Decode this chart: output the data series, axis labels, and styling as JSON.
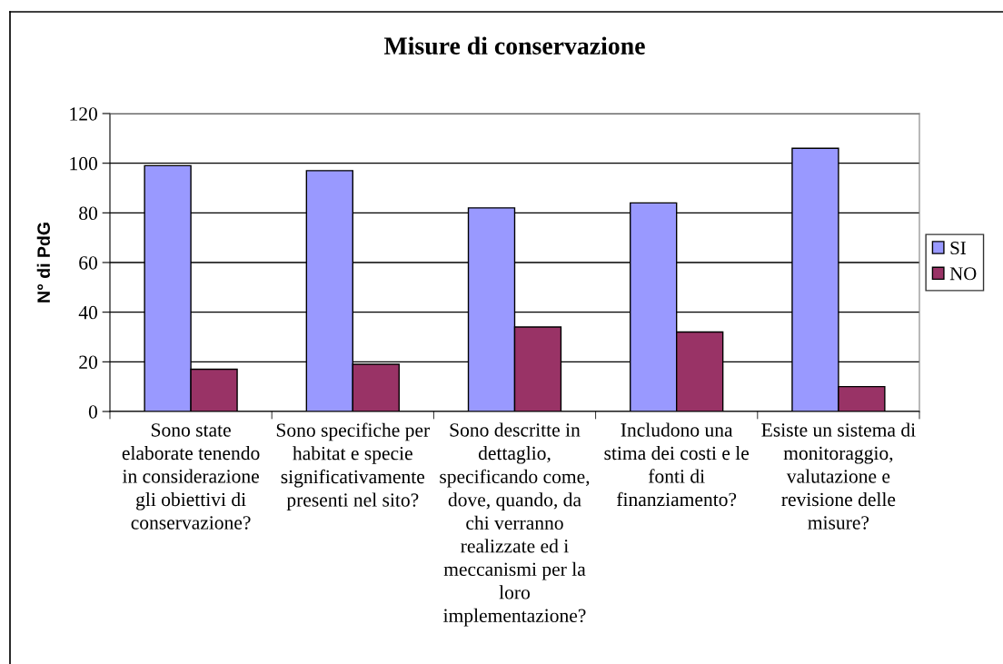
{
  "chart_data": {
    "type": "bar",
    "title": "Misure di conservazione",
    "ylabel": "N° di PdG",
    "categories": [
      "Sono state elaborate tenendo in considerazione gli obiettivi di conservazione?",
      "Sono specifiche per habitat e specie significativamente presenti nel sito?",
      "Sono descritte in dettaglio, specificando come, dove, quando, da chi verranno realizzate ed i meccanismi per la loro implementazione?",
      "Includono una stima dei costi e le fonti di finanziamento?",
      "Esiste un sistema di monitoraggio, valutazione e revisione delle misure?"
    ],
    "series": [
      {
        "name": "SI",
        "color": "#9999ff",
        "values": [
          99,
          97,
          82,
          84,
          106
        ]
      },
      {
        "name": "NO",
        "color": "#993366",
        "values": [
          17,
          19,
          34,
          32,
          10
        ]
      }
    ],
    "ylim": [
      0,
      120
    ],
    "yticks": [
      0,
      20,
      40,
      60,
      80,
      100,
      120
    ],
    "grid": "y",
    "legend": "right"
  }
}
